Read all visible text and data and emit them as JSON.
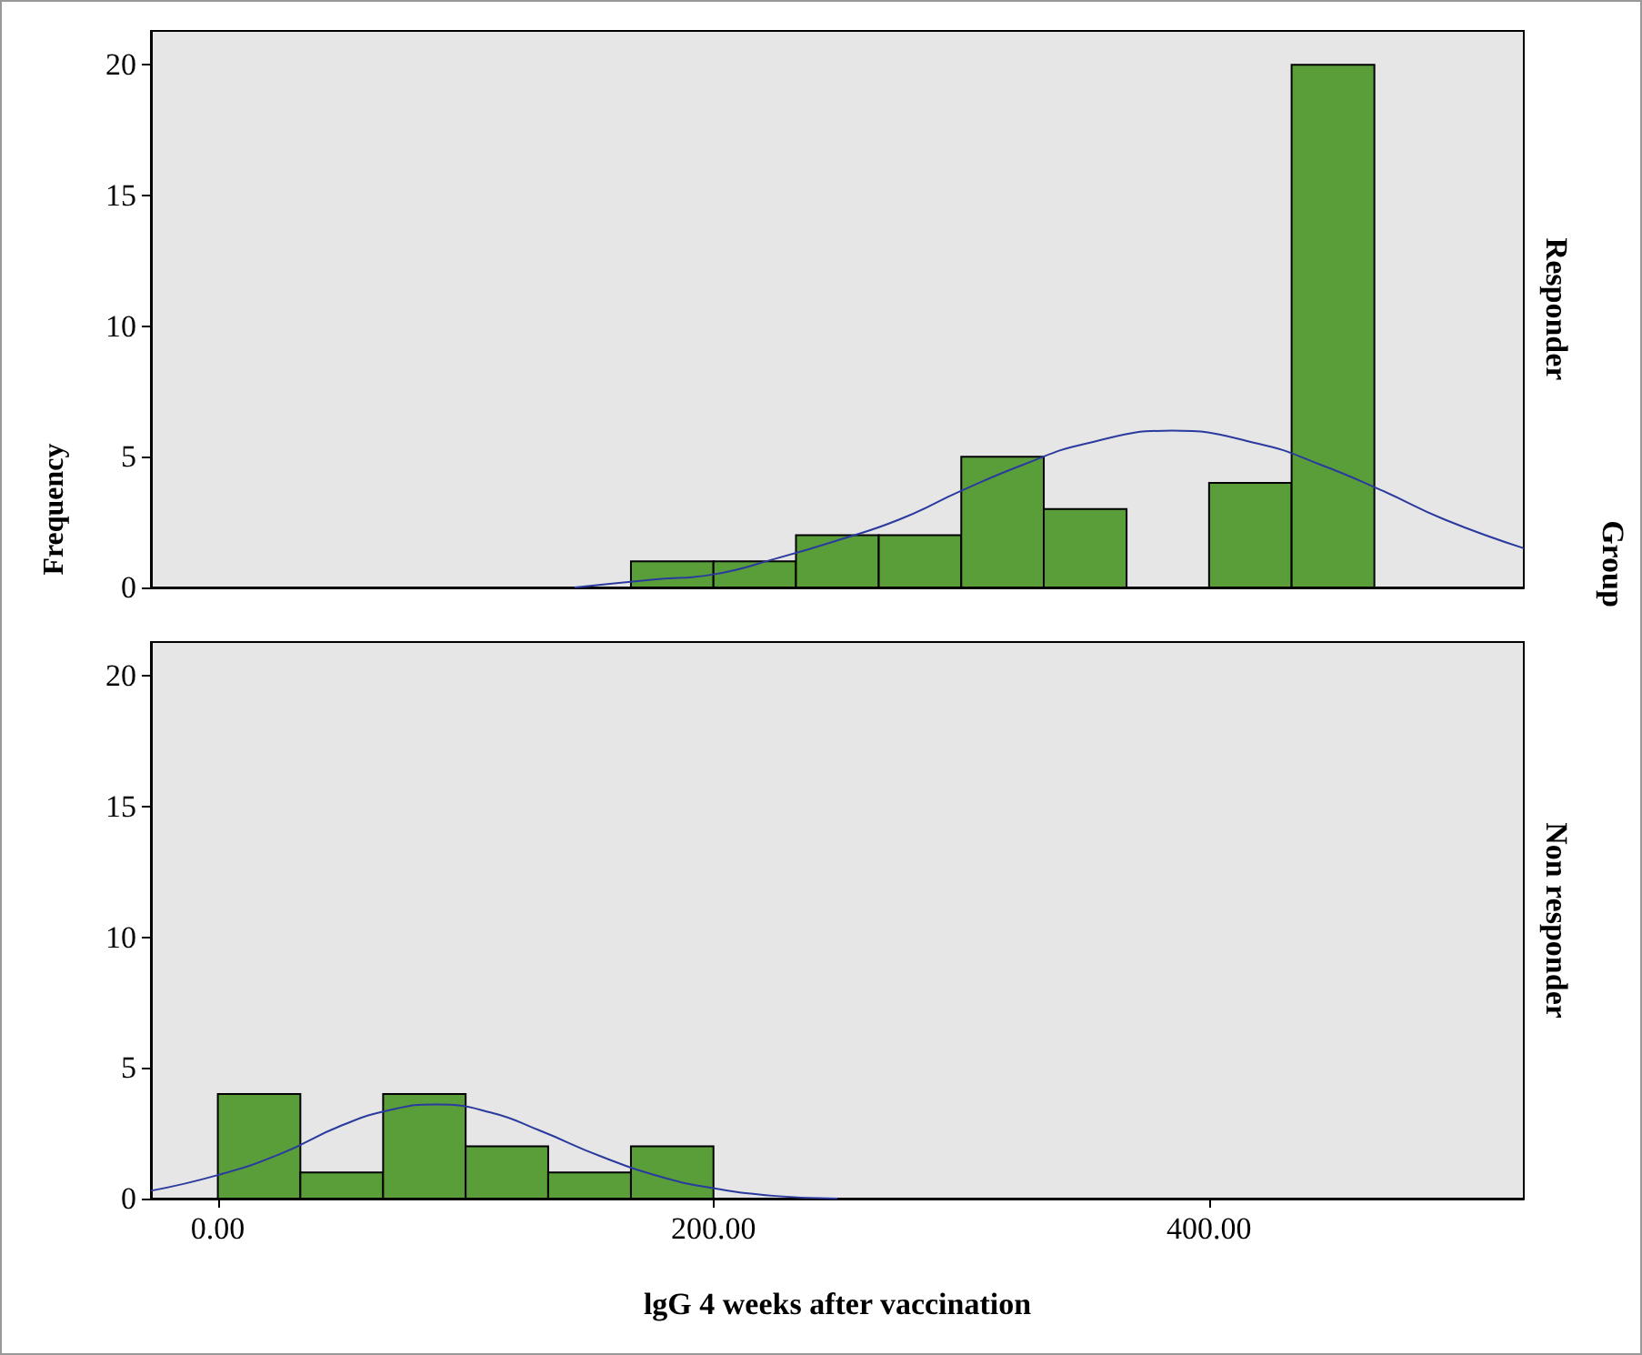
{
  "chart_data": [
    {
      "type": "histogram",
      "title": "Responder",
      "ylabel": "Frequency",
      "annotations": [
        "Group"
      ],
      "bins": [
        166.7,
        200,
        233.3,
        266.7,
        300,
        333.3,
        366.7,
        400,
        433.3,
        466.7
      ],
      "values": [
        1,
        1,
        2,
        2,
        5,
        3,
        0,
        4,
        20
      ],
      "color": "#5a9e3a",
      "xlim": [
        -27,
        527
      ],
      "ylim": [
        0,
        21.3
      ],
      "yticks": [
        0,
        5,
        10,
        15,
        20
      ],
      "tick_labels": "y",
      "grid": false,
      "series": [
        {
          "type": "line",
          "color": "#2b3a9e",
          "x": [
            144,
            175,
            200,
            225,
            250,
            275,
            300,
            325,
            350,
            385,
            420,
            445,
            470,
            495,
            527
          ],
          "values": [
            0,
            0.3,
            0.5,
            1.1,
            1.8,
            2.6,
            3.7,
            4.7,
            5.5,
            6,
            5.5,
            4.7,
            3.7,
            2.6,
            1.5
          ]
        }
      ]
    },
    {
      "type": "histogram",
      "title": "Non responder",
      "xlabel": "lgG 4 weeks after vaccination",
      "bins": [
        0,
        33.3,
        66.7,
        100,
        133.3,
        166.7,
        200
      ],
      "values": [
        4,
        1,
        4,
        2,
        1,
        2
      ],
      "color": "#5a9e3a",
      "xlim": [
        -27,
        527
      ],
      "xticks": [
        {
          "value": 0,
          "label": "0.00"
        },
        {
          "value": 200,
          "label": "200.00"
        },
        {
          "value": 400,
          "label": "400.00"
        }
      ],
      "ylim": [
        0,
        21.3
      ],
      "yticks": [
        0,
        5,
        10,
        15,
        20
      ],
      "grid": false,
      "series": [
        {
          "type": "line",
          "color": "#2b3a9e",
          "x": [
            -27,
            0,
            25,
            50,
            70,
            88,
            110,
            130,
            155,
            180,
            200,
            225,
            250
          ],
          "values": [
            0.3,
            0.9,
            1.7,
            2.8,
            3.4,
            3.6,
            3.3,
            2.6,
            1.6,
            0.8,
            0.4,
            0.1,
            0
          ]
        }
      ]
    }
  ]
}
